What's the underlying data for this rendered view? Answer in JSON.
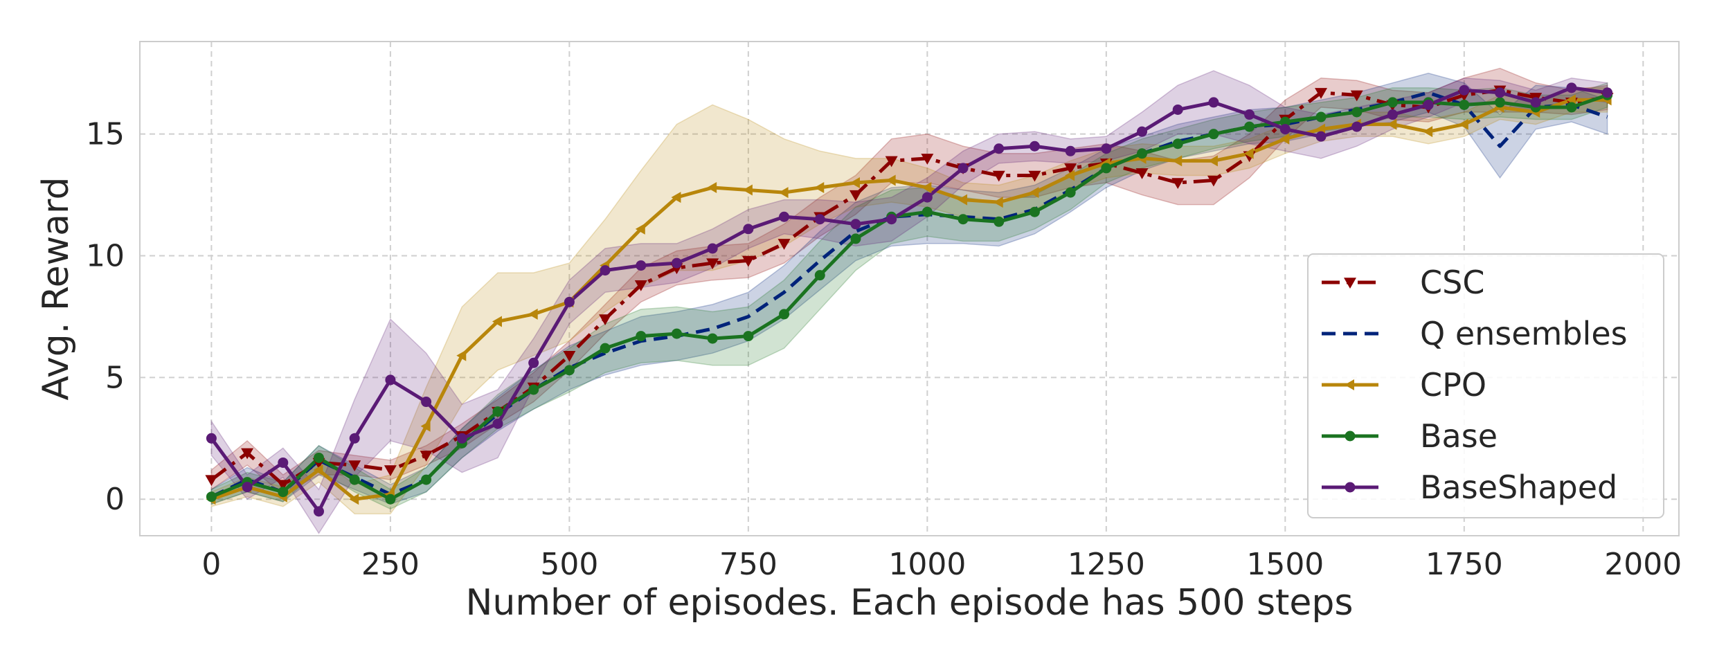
{
  "chart_data": {
    "type": "line",
    "title": "",
    "xlabel": "Number of episodes. Each episode has 500 steps",
    "ylabel": "Avg. Reward",
    "xlim": [
      -100,
      2050
    ],
    "ylim": [
      -1.5,
      18.8
    ],
    "xticks": [
      0,
      250,
      500,
      750,
      1000,
      1250,
      1500,
      1750,
      2000
    ],
    "yticks": [
      0,
      5,
      10,
      15
    ],
    "grid": true,
    "legend_position": "lower-right",
    "x": [
      0,
      50,
      100,
      150,
      200,
      250,
      300,
      350,
      400,
      450,
      500,
      550,
      600,
      650,
      700,
      750,
      800,
      850,
      900,
      950,
      1000,
      1050,
      1100,
      1150,
      1200,
      1250,
      1300,
      1350,
      1400,
      1450,
      1500,
      1550,
      1600,
      1650,
      1700,
      1750,
      1800,
      1850,
      1900,
      1950
    ],
    "series": [
      {
        "name": "CSC",
        "color": "#8b0000",
        "linestyle": "dashdot",
        "marker": "triangle-down",
        "values": [
          0.8,
          1.9,
          0.6,
          1.5,
          1.4,
          1.2,
          1.8,
          2.6,
          3.6,
          4.6,
          5.9,
          7.4,
          8.8,
          9.5,
          9.7,
          9.8,
          10.5,
          11.6,
          12.5,
          13.9,
          14.0,
          13.6,
          13.3,
          13.3,
          13.6,
          13.8,
          13.4,
          13.0,
          13.1,
          14.1,
          15.6,
          16.7,
          16.6,
          16.2,
          16.1,
          16.6,
          16.8,
          16.5,
          16.3,
          16.5
        ],
        "spread": [
          0.4,
          0.5,
          0.4,
          0.5,
          0.4,
          0.4,
          0.4,
          0.5,
          0.5,
          0.6,
          0.6,
          0.6,
          0.7,
          0.7,
          0.7,
          0.7,
          0.8,
          0.8,
          0.8,
          0.9,
          1.0,
          0.9,
          0.9,
          0.9,
          0.8,
          0.8,
          0.9,
          0.9,
          1.0,
          0.9,
          0.8,
          0.6,
          0.6,
          0.6,
          0.6,
          0.7,
          0.9,
          0.6,
          0.5,
          0.5
        ]
      },
      {
        "name": "Q ensembles",
        "color": "#00237a",
        "linestyle": "dashed",
        "marker": "none",
        "values": [
          0.1,
          0.8,
          0.3,
          1.6,
          0.9,
          0.2,
          0.8,
          2.3,
          3.5,
          4.5,
          5.4,
          6.0,
          6.5,
          6.7,
          7.0,
          7.5,
          8.5,
          9.8,
          11.0,
          11.6,
          11.7,
          11.6,
          11.5,
          11.9,
          12.7,
          13.6,
          14.2,
          14.7,
          15.0,
          15.3,
          15.4,
          15.7,
          16.0,
          16.3,
          16.7,
          16.2,
          14.5,
          16.1,
          16.2,
          15.7
        ],
        "spread": [
          0.3,
          0.5,
          0.4,
          0.6,
          0.5,
          0.4,
          0.5,
          0.6,
          0.7,
          0.8,
          0.9,
          0.9,
          1.0,
          1.0,
          1.0,
          1.0,
          1.1,
          1.2,
          1.2,
          1.2,
          1.2,
          1.1,
          1.1,
          1.0,
          0.9,
          0.8,
          0.7,
          0.7,
          0.7,
          0.7,
          0.7,
          0.7,
          0.7,
          0.8,
          0.8,
          0.9,
          1.3,
          0.9,
          0.7,
          0.7
        ]
      },
      {
        "name": "CPO",
        "color": "#b8860b",
        "linestyle": "solid",
        "marker": "triangle-left",
        "values": [
          0.0,
          0.5,
          0.1,
          1.2,
          0.0,
          0.2,
          3.0,
          5.9,
          7.3,
          7.6,
          8.1,
          9.6,
          11.1,
          12.4,
          12.8,
          12.7,
          12.6,
          12.8,
          13.0,
          13.1,
          12.8,
          12.3,
          12.2,
          12.6,
          13.3,
          13.8,
          14.0,
          13.9,
          13.9,
          14.2,
          14.8,
          15.2,
          15.4,
          15.4,
          15.1,
          15.4,
          16.1,
          15.9,
          16.4,
          16.4
        ],
        "spread": [
          0.3,
          0.4,
          0.4,
          0.5,
          0.6,
          0.8,
          1.6,
          2.0,
          2.0,
          1.7,
          1.6,
          1.9,
          2.4,
          3.0,
          3.4,
          2.9,
          2.2,
          1.5,
          1.0,
          0.9,
          0.8,
          0.7,
          0.7,
          0.7,
          0.6,
          0.6,
          0.6,
          0.6,
          0.6,
          0.6,
          0.6,
          0.5,
          0.5,
          0.5,
          0.5,
          0.5,
          0.5,
          0.5,
          0.5,
          0.5
        ]
      },
      {
        "name": "Base",
        "color": "#1a7320",
        "linestyle": "solid",
        "marker": "circle",
        "values": [
          0.1,
          0.7,
          0.3,
          1.7,
          0.8,
          0.0,
          0.8,
          2.3,
          3.6,
          4.5,
          5.3,
          6.2,
          6.7,
          6.8,
          6.6,
          6.7,
          7.6,
          9.2,
          10.7,
          11.6,
          11.8,
          11.5,
          11.4,
          11.8,
          12.6,
          13.6,
          14.2,
          14.6,
          15.0,
          15.3,
          15.5,
          15.7,
          15.9,
          16.3,
          16.3,
          16.2,
          16.3,
          16.1,
          16.1,
          16.6
        ],
        "spread": [
          0.3,
          0.4,
          0.4,
          0.5,
          0.5,
          0.4,
          0.5,
          0.6,
          0.7,
          0.8,
          0.9,
          1.0,
          1.1,
          1.1,
          1.1,
          1.2,
          1.4,
          1.4,
          1.3,
          1.1,
          1.0,
          0.9,
          0.8,
          0.7,
          0.7,
          0.6,
          0.6,
          0.6,
          0.6,
          0.6,
          0.6,
          0.6,
          0.6,
          0.6,
          0.6,
          0.6,
          0.6,
          0.5,
          0.5,
          0.5
        ]
      },
      {
        "name": "BaseShaped",
        "color": "#5a1a75",
        "linestyle": "solid",
        "marker": "circle",
        "values": [
          2.5,
          0.5,
          1.5,
          -0.5,
          2.5,
          4.9,
          4.0,
          2.5,
          3.1,
          5.6,
          8.1,
          9.4,
          9.6,
          9.7,
          10.3,
          11.1,
          11.6,
          11.5,
          11.3,
          11.5,
          12.4,
          13.6,
          14.4,
          14.5,
          14.3,
          14.4,
          15.1,
          16.0,
          16.3,
          15.8,
          15.2,
          14.9,
          15.3,
          15.8,
          16.2,
          16.8,
          16.7,
          16.3,
          16.9,
          16.7
        ],
        "spread": [
          0.7,
          0.5,
          0.6,
          0.9,
          1.6,
          2.5,
          2.0,
          1.4,
          1.4,
          1.0,
          0.9,
          0.9,
          0.9,
          0.8,
          0.8,
          0.8,
          0.7,
          0.8,
          0.9,
          0.9,
          0.8,
          0.7,
          0.6,
          0.6,
          0.5,
          0.5,
          0.8,
          1.0,
          1.3,
          1.2,
          0.9,
          0.9,
          0.8,
          0.6,
          0.5,
          0.5,
          0.5,
          0.5,
          0.4,
          0.4
        ]
      }
    ]
  }
}
